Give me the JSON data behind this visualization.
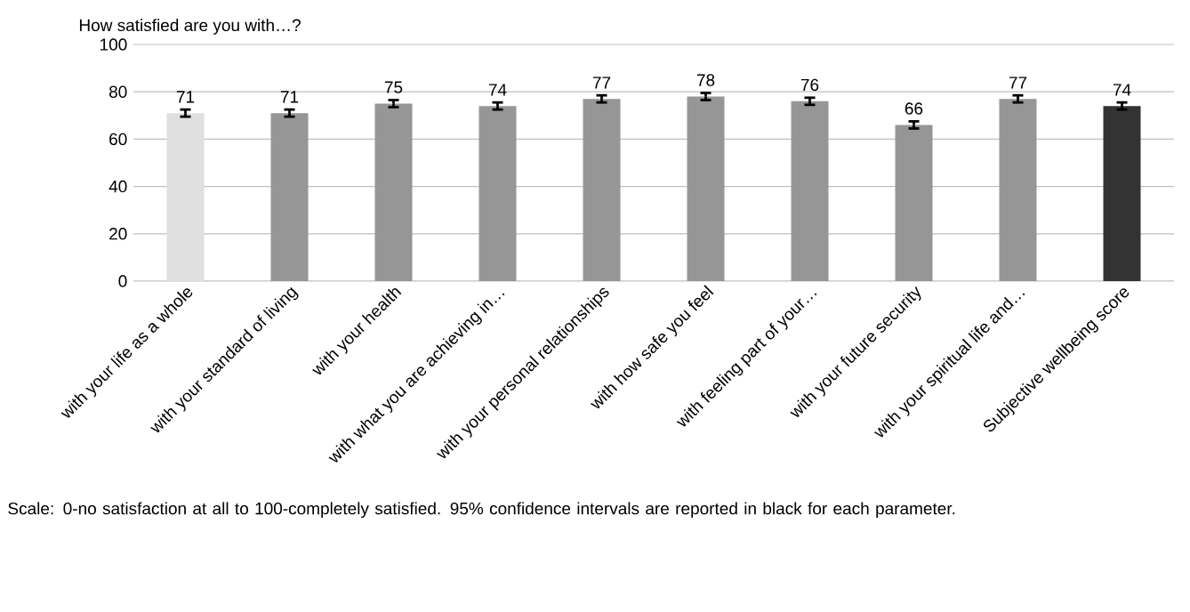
{
  "chart_data": {
    "type": "bar",
    "title": "How satisfied are you with…?",
    "categories": [
      "with your life as a whole",
      "with your standard of living",
      "with your health",
      "with what you are achieving in…",
      "with your personal relationships",
      "with how safe you feel",
      "with feeling part of your…",
      "with your future security",
      "with your spiritual life and…",
      "Subjective wellbeing score"
    ],
    "values": [
      71,
      71,
      75,
      74,
      77,
      78,
      76,
      66,
      77,
      74
    ],
    "errors": [
      1.5,
      1.5,
      1.5,
      1.5,
      1.5,
      1.5,
      1.5,
      1.5,
      1.5,
      1.5
    ],
    "colors": [
      "#e0e0e0",
      "#969696",
      "#969696",
      "#969696",
      "#969696",
      "#969696",
      "#969696",
      "#969696",
      "#969696",
      "#333333"
    ],
    "data_labels": true,
    "ylim": [
      0,
      100
    ],
    "yticks": [
      0,
      20,
      40,
      60,
      80,
      100
    ],
    "grid": "y",
    "annotations": [
      "Scale: 0-no satisfaction at all to 100-completely satisfied. 95% confidence intervals are reported in black for each parameter."
    ]
  }
}
